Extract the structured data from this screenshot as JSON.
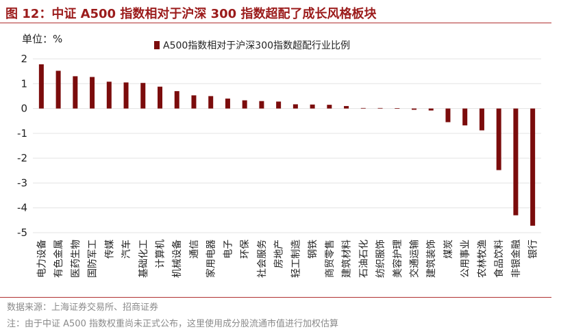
{
  "figure_title": "图 12：中证 A500 指数相对于沪深 300 指数超配了成长风格板块",
  "unit_label": "单位：%",
  "source": "数据来源：上海证券交易所、招商证券",
  "note": "注：由于中证 A500 指数权重尚未正式公布，这里使用成分股流通市值进行加权估算",
  "colors": {
    "bar": "#7b0c0c",
    "title": "#9b1b1b",
    "grid": "#e3e3e3"
  },
  "chart_data": {
    "type": "bar",
    "title": "",
    "xlabel": "",
    "ylabel": "",
    "ylim": [
      -5,
      2
    ],
    "yticks": [
      2,
      1,
      0,
      -1,
      -2,
      -3,
      -4,
      -5
    ],
    "grid": true,
    "legend_position": "top-center",
    "categories": [
      "电力设备",
      "有色金属",
      "医药生物",
      "国防军工",
      "传媒",
      "汽车",
      "基础化工",
      "计算机",
      "机械设备",
      "通信",
      "家用电器",
      "电子",
      "环保",
      "社会服务",
      "房地产",
      "轻工制造",
      "钢铁",
      "商贸零售",
      "建筑材料",
      "石油石化",
      "纺织服饰",
      "美容护理",
      "交通运输",
      "建筑装饰",
      "煤炭",
      "公用事业",
      "农林牧渔",
      "食品饮料",
      "非银金融",
      "银行"
    ],
    "series": [
      {
        "name": "A500指数相对于沪深300指数超配行业比例",
        "values": [
          1.78,
          1.52,
          1.3,
          1.27,
          1.08,
          1.05,
          1.03,
          0.88,
          0.7,
          0.53,
          0.5,
          0.4,
          0.33,
          0.3,
          0.28,
          0.17,
          0.16,
          0.15,
          0.1,
          0.02,
          0.02,
          0.01,
          -0.05,
          -0.08,
          -0.55,
          -0.68,
          -0.88,
          -2.48,
          -4.3,
          -4.72
        ]
      }
    ]
  }
}
